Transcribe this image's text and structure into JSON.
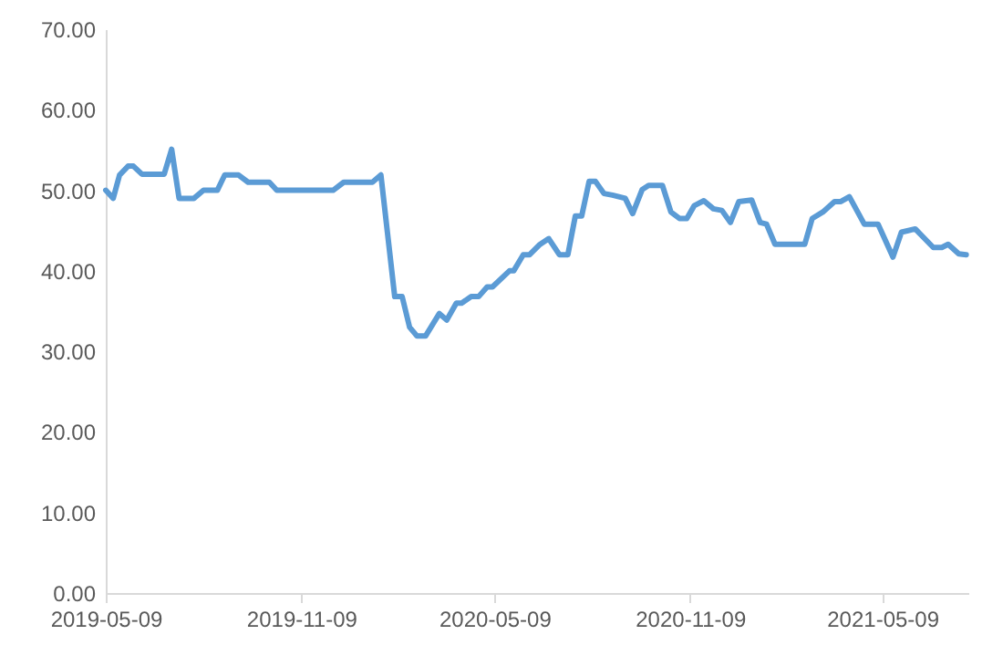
{
  "chart_data": {
    "type": "line",
    "x": [
      "2019-05-09",
      "2019-05-16",
      "2019-05-22",
      "2019-05-30",
      "2019-06-04",
      "2019-06-12",
      "2019-07-03",
      "2019-07-10",
      "2019-07-17",
      "2019-07-31",
      "2019-08-09",
      "2019-08-22",
      "2019-08-29",
      "2019-09-11",
      "2019-09-20",
      "2019-10-10",
      "2019-10-17",
      "2019-12-09",
      "2019-12-19",
      "2020-01-15",
      "2020-01-23",
      "2020-02-05",
      "2020-02-12",
      "2020-02-19",
      "2020-02-26",
      "2020-03-05",
      "2020-03-18",
      "2020-03-25",
      "2020-04-03",
      "2020-04-08",
      "2020-04-17",
      "2020-04-24",
      "2020-05-02",
      "2020-05-07",
      "2020-05-23",
      "2020-05-27",
      "2020-06-05",
      "2020-06-11",
      "2020-06-20",
      "2020-06-29",
      "2020-07-09",
      "2020-07-17",
      "2020-07-24",
      "2020-07-30",
      "2020-08-06",
      "2020-08-12",
      "2020-08-20",
      "2020-08-28",
      "2020-09-09",
      "2020-09-16",
      "2020-09-25",
      "2020-10-01",
      "2020-10-14",
      "2020-10-22",
      "2020-10-30",
      "2020-11-06",
      "2020-11-13",
      "2020-11-22",
      "2020-12-01",
      "2020-12-09",
      "2020-12-17",
      "2020-12-25",
      "2021-01-06",
      "2021-01-14",
      "2021-01-20",
      "2021-01-28",
      "2021-02-25",
      "2021-03-04",
      "2021-03-14",
      "2021-03-25",
      "2021-03-31",
      "2021-04-08",
      "2021-04-22",
      "2021-05-05",
      "2021-05-19",
      "2021-05-27",
      "2021-06-09",
      "2021-06-26",
      "2021-07-04",
      "2021-07-10",
      "2021-07-20",
      "2021-07-27"
    ],
    "series": [
      {
        "color": "#5b9bd5",
        "values": [
          50.0,
          49.0,
          51.9,
          53.0,
          53.0,
          52.0,
          52.0,
          55.1,
          49.0,
          49.0,
          50.0,
          50.0,
          51.9,
          51.9,
          51.0,
          51.0,
          50.0,
          50.0,
          51.0,
          51.0,
          51.9,
          36.8,
          36.8,
          33.0,
          31.9,
          31.9,
          34.7,
          33.9,
          36.0,
          36.0,
          36.8,
          36.8,
          38.0,
          38.0,
          40.0,
          40.0,
          42.0,
          42.0,
          43.2,
          44.0,
          42.0,
          42.0,
          46.8,
          46.8,
          51.1,
          51.1,
          49.6,
          49.4,
          49.0,
          47.1,
          50.1,
          50.6,
          50.6,
          47.3,
          46.5,
          46.5,
          48.1,
          48.7,
          47.7,
          47.5,
          46.0,
          48.6,
          48.8,
          46.0,
          45.8,
          43.3,
          43.3,
          46.5,
          47.3,
          48.6,
          48.6,
          49.2,
          45.8,
          45.8,
          41.7,
          44.8,
          45.2,
          42.9,
          42.9,
          43.3,
          42.1,
          42.0
        ]
      }
    ],
    "xlim": [
      "2019-05-09",
      "2021-07-29"
    ],
    "xticks": [
      "2019-05-09",
      "2019-11-09",
      "2020-05-09",
      "2020-11-09",
      "2021-05-09"
    ],
    "ylim": [
      0,
      70
    ],
    "yticks": [
      {
        "value": 0,
        "label": "0.00"
      },
      {
        "value": 10,
        "label": "10.00"
      },
      {
        "value": 20,
        "label": "20.00"
      },
      {
        "value": 30,
        "label": "30.00"
      },
      {
        "value": 40,
        "label": "40.00"
      },
      {
        "value": 50,
        "label": "50.00"
      },
      {
        "value": 60,
        "label": "60.00"
      },
      {
        "value": 70,
        "label": "70.00"
      }
    ]
  }
}
